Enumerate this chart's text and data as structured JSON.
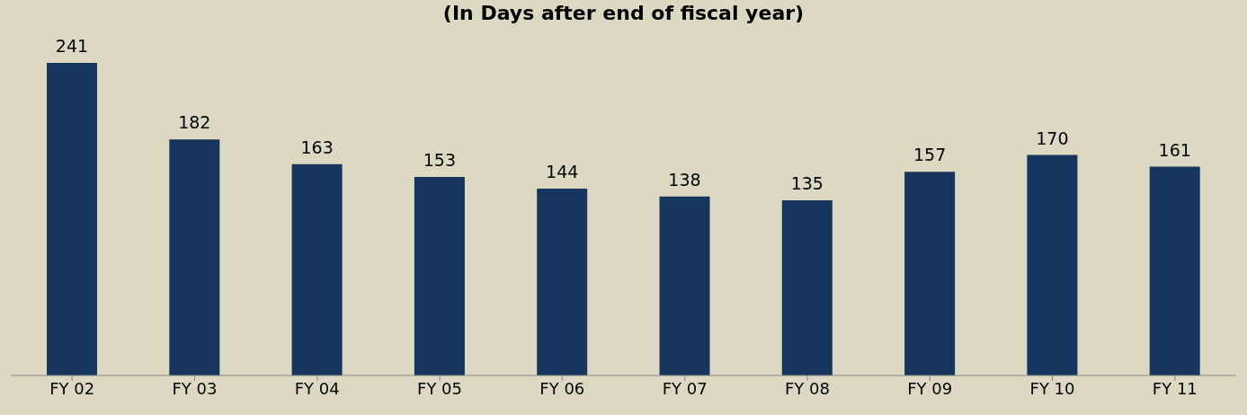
{
  "chart_data": {
    "type": "bar",
    "title": "(In Days after end of fiscal year)",
    "categories": [
      "FY 02",
      "FY 03",
      "FY 04",
      "FY 05",
      "FY 06",
      "FY 07",
      "FY 08",
      "FY 09",
      "FY 10",
      "FY 11"
    ],
    "values": [
      241,
      182,
      163,
      153,
      144,
      138,
      135,
      157,
      170,
      161
    ],
    "color": "#17365d",
    "data_labels": true,
    "grid": false,
    "legend": false
  }
}
